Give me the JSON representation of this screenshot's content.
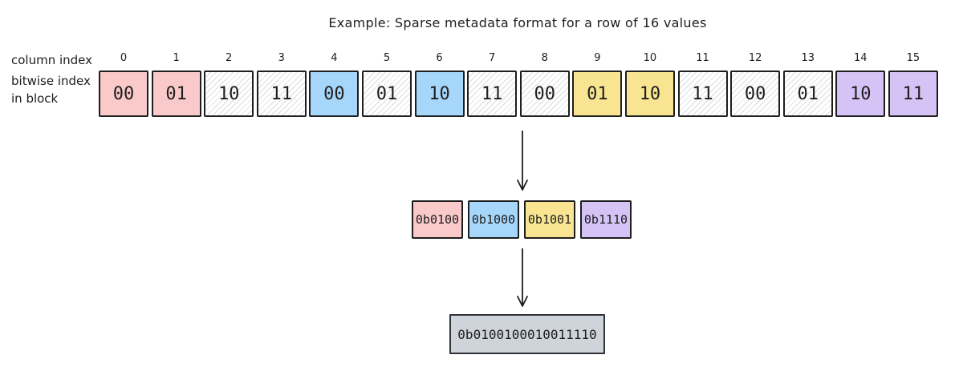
{
  "title": "Example: Sparse metadata format for a row of 16 values",
  "labels": {
    "column_index": "column index",
    "bitwise_index_lines": [
      "bitwise index",
      "in block"
    ]
  },
  "colors": {
    "pink": "#fac9ca",
    "blue": "#a6d6f9",
    "yellow": "#f9e591",
    "purple": "#d4c3f4",
    "gray": "#ced4da",
    "border": "#1e1e1e",
    "hatch_line": "#dcdce1"
  },
  "cells": [
    {
      "index": "0",
      "value": "00",
      "fill": "pink"
    },
    {
      "index": "1",
      "value": "01",
      "fill": "pink"
    },
    {
      "index": "2",
      "value": "10",
      "fill": "hatch"
    },
    {
      "index": "3",
      "value": "11",
      "fill": "hatch"
    },
    {
      "index": "4",
      "value": "00",
      "fill": "blue"
    },
    {
      "index": "5",
      "value": "01",
      "fill": "hatch"
    },
    {
      "index": "6",
      "value": "10",
      "fill": "blue"
    },
    {
      "index": "7",
      "value": "11",
      "fill": "hatch"
    },
    {
      "index": "8",
      "value": "00",
      "fill": "hatch"
    },
    {
      "index": "9",
      "value": "01",
      "fill": "yellow"
    },
    {
      "index": "10",
      "value": "10",
      "fill": "yellow"
    },
    {
      "index": "11",
      "value": "11",
      "fill": "hatch"
    },
    {
      "index": "12",
      "value": "00",
      "fill": "hatch"
    },
    {
      "index": "13",
      "value": "01",
      "fill": "hatch"
    },
    {
      "index": "14",
      "value": "10",
      "fill": "purple"
    },
    {
      "index": "15",
      "value": "11",
      "fill": "purple"
    }
  ],
  "group_boxes": [
    {
      "value": "0b0100",
      "fill": "pink"
    },
    {
      "value": "0b1000",
      "fill": "blue"
    },
    {
      "value": "0b1001",
      "fill": "yellow"
    },
    {
      "value": "0b1110",
      "fill": "purple"
    }
  ],
  "result_box": {
    "value": "0b0100100010011110",
    "fill": "gray"
  }
}
